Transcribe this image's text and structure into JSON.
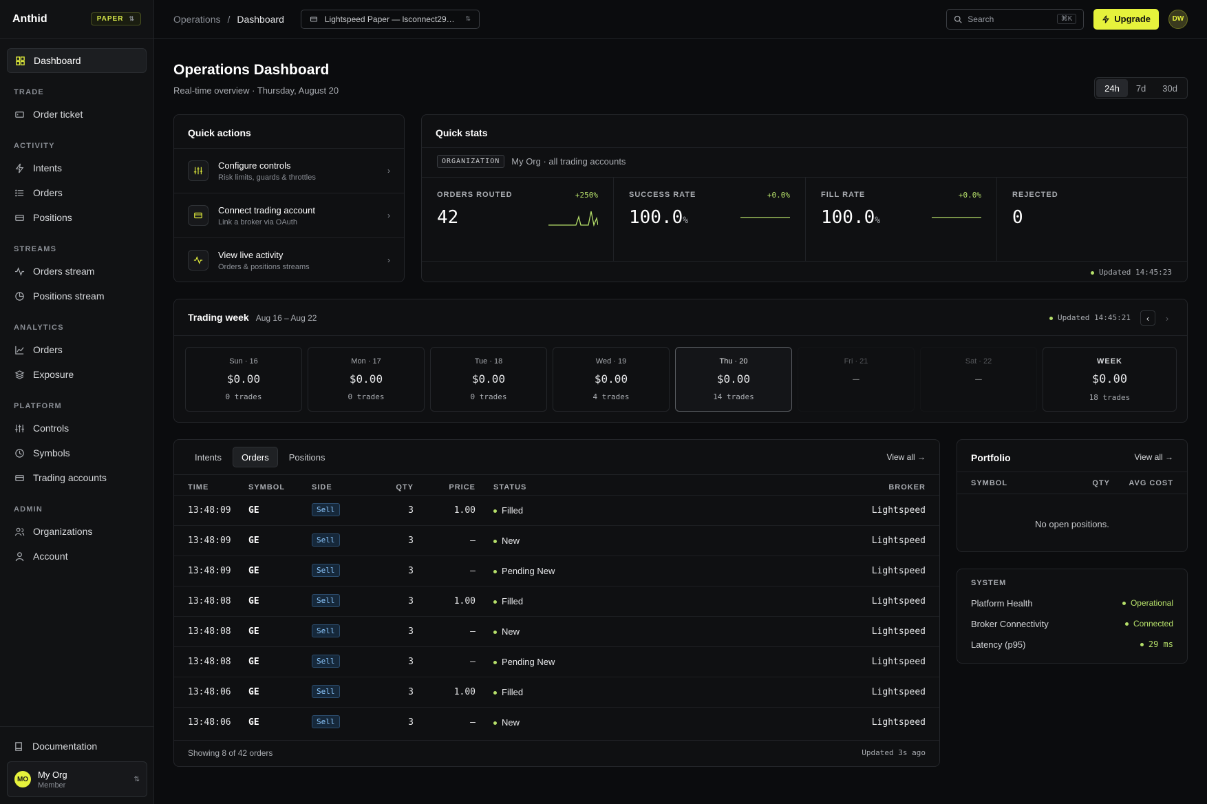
{
  "brand": {
    "name": "Anthid",
    "mode": "PAPER"
  },
  "sidebar": {
    "dashboard": "Dashboard",
    "sections": [
      {
        "title": "TRADE",
        "items": [
          "Order ticket"
        ]
      },
      {
        "title": "ACTIVITY",
        "items": [
          "Intents",
          "Orders",
          "Positions"
        ]
      },
      {
        "title": "STREAMS",
        "items": [
          "Orders stream",
          "Positions stream"
        ]
      },
      {
        "title": "ANALYTICS",
        "items": [
          "Orders",
          "Exposure"
        ]
      },
      {
        "title": "PLATFORM",
        "items": [
          "Controls",
          "Symbols",
          "Trading accounts"
        ]
      },
      {
        "title": "ADMIN",
        "items": [
          "Organizations",
          "Account"
        ]
      }
    ],
    "documentation": "Documentation",
    "org": {
      "initials": "MO",
      "name": "My Org",
      "role": "Member"
    }
  },
  "topbar": {
    "crumb_parent": "Operations",
    "crumb_sep": "/",
    "crumb_current": "Dashboard",
    "account_select": "Lightspeed Paper — lsconnect29…",
    "search_placeholder": "Search",
    "search_kbd": "⌘K",
    "upgrade": "Upgrade",
    "user_initials": "DW"
  },
  "page": {
    "title": "Operations Dashboard",
    "subtitle": "Real-time overview · Thursday, August 20",
    "ranges": [
      "24h",
      "7d",
      "30d"
    ],
    "active_range": "24h"
  },
  "quick_actions": {
    "title": "Quick actions",
    "items": [
      {
        "title": "Configure controls",
        "desc": "Risk limits, guards & throttles"
      },
      {
        "title": "Connect trading account",
        "desc": "Link a broker via OAuth"
      },
      {
        "title": "View live activity",
        "desc": "Orders & positions streams"
      }
    ]
  },
  "quick_stats": {
    "title": "Quick stats",
    "org_tag": "ORGANIZATION",
    "org_desc": "My Org · all trading accounts",
    "stats": [
      {
        "label": "ORDERS ROUTED",
        "value": "42",
        "unit": "",
        "delta": "+250%"
      },
      {
        "label": "SUCCESS RATE",
        "value": "100.0",
        "unit": "%",
        "delta": "+0.0%"
      },
      {
        "label": "FILL RATE",
        "value": "100.0",
        "unit": "%",
        "delta": "+0.0%"
      },
      {
        "label": "REJECTED",
        "value": "0",
        "unit": "",
        "delta": ""
      }
    ],
    "updated": "Updated 14:45:23"
  },
  "trading_week": {
    "title": "Trading week",
    "range": "Aug 16 – Aug 22",
    "updated": "Updated 14:45:21",
    "days": [
      {
        "label": "Sun · 16",
        "value": "$0.00",
        "trades": "0 trades"
      },
      {
        "label": "Mon · 17",
        "value": "$0.00",
        "trades": "0 trades"
      },
      {
        "label": "Tue · 18",
        "value": "$0.00",
        "trades": "0 trades"
      },
      {
        "label": "Wed · 19",
        "value": "$0.00",
        "trades": "4 trades"
      },
      {
        "label": "Thu · 20",
        "value": "$0.00",
        "trades": "14 trades"
      },
      {
        "label": "Fri · 21",
        "value": "—",
        "trades": ""
      },
      {
        "label": "Sat · 22",
        "value": "—",
        "trades": ""
      }
    ],
    "week": {
      "label": "WEEK",
      "value": "$0.00",
      "trades": "18 trades"
    }
  },
  "orders_table": {
    "tabs": [
      "Intents",
      "Orders",
      "Positions"
    ],
    "active_tab": "Orders",
    "view_all": "View all →",
    "columns": [
      "TIME",
      "SYMBOL",
      "SIDE",
      "QTY",
      "PRICE",
      "STATUS",
      "BROKER"
    ],
    "rows": [
      {
        "time": "13:48:09",
        "symbol": "GE",
        "side": "Sell",
        "qty": "3",
        "price": "1.00",
        "status": "Filled",
        "broker": "Lightspeed"
      },
      {
        "time": "13:48:09",
        "symbol": "GE",
        "side": "Sell",
        "qty": "3",
        "price": "—",
        "status": "New",
        "broker": "Lightspeed"
      },
      {
        "time": "13:48:09",
        "symbol": "GE",
        "side": "Sell",
        "qty": "3",
        "price": "—",
        "status": "Pending New",
        "broker": "Lightspeed"
      },
      {
        "time": "13:48:08",
        "symbol": "GE",
        "side": "Sell",
        "qty": "3",
        "price": "1.00",
        "status": "Filled",
        "broker": "Lightspeed"
      },
      {
        "time": "13:48:08",
        "symbol": "GE",
        "side": "Sell",
        "qty": "3",
        "price": "—",
        "status": "New",
        "broker": "Lightspeed"
      },
      {
        "time": "13:48:08",
        "symbol": "GE",
        "side": "Sell",
        "qty": "3",
        "price": "—",
        "status": "Pending New",
        "broker": "Lightspeed"
      },
      {
        "time": "13:48:06",
        "symbol": "GE",
        "side": "Sell",
        "qty": "3",
        "price": "1.00",
        "status": "Filled",
        "broker": "Lightspeed"
      },
      {
        "time": "13:48:06",
        "symbol": "GE",
        "side": "Sell",
        "qty": "3",
        "price": "—",
        "status": "New",
        "broker": "Lightspeed"
      }
    ],
    "footer_left": "Showing 8 of 42 orders",
    "footer_right": "Updated 3s ago"
  },
  "portfolio": {
    "title": "Portfolio",
    "view_all": "View all →",
    "columns": [
      "SYMBOL",
      "QTY",
      "AVG COST"
    ],
    "empty": "No open positions."
  },
  "system": {
    "title": "SYSTEM",
    "rows": [
      {
        "label": "Platform Health",
        "value": "Operational"
      },
      {
        "label": "Broker Connectivity",
        "value": "Connected"
      },
      {
        "label": "Latency (p95)",
        "value": "29 ms"
      }
    ]
  },
  "colors": {
    "accent": "#e6f23c",
    "positive": "#b6e06a",
    "sell": "#8cc8ff",
    "background": "#0b0c0e"
  }
}
